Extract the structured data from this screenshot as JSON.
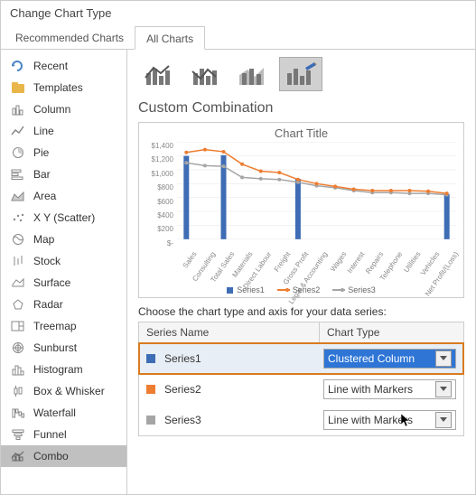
{
  "window": {
    "title": "Change Chart Type"
  },
  "tabs": {
    "recommended": "Recommended Charts",
    "all": "All Charts"
  },
  "sidebar": {
    "items": [
      {
        "label": "Recent"
      },
      {
        "label": "Templates"
      },
      {
        "label": "Column"
      },
      {
        "label": "Line"
      },
      {
        "label": "Pie"
      },
      {
        "label": "Bar"
      },
      {
        "label": "Area"
      },
      {
        "label": "X Y (Scatter)"
      },
      {
        "label": "Map"
      },
      {
        "label": "Stock"
      },
      {
        "label": "Surface"
      },
      {
        "label": "Radar"
      },
      {
        "label": "Treemap"
      },
      {
        "label": "Sunburst"
      },
      {
        "label": "Histogram"
      },
      {
        "label": "Box & Whisker"
      },
      {
        "label": "Waterfall"
      },
      {
        "label": "Funnel"
      },
      {
        "label": "Combo"
      }
    ]
  },
  "section_title": "Custom Combination",
  "preview": {
    "title": "Chart Title",
    "ylabels": [
      "$1,400",
      "$1,200",
      "$1,000",
      "$800",
      "$600",
      "$400",
      "$200",
      "$-"
    ],
    "categories": [
      "Sales",
      "Consulting",
      "Total Sales",
      "Materials",
      "Direct Labour",
      "Freight",
      "Gross Profit",
      "Legal & Accounting",
      "Wages",
      "Interest",
      "Repairs",
      "Telephone",
      "Utilities",
      "Vehicles",
      "Net Profit/(Loss)"
    ],
    "bars": [
      1200,
      0,
      1210,
      0,
      0,
      0,
      870,
      0,
      0,
      0,
      0,
      0,
      0,
      0,
      650
    ],
    "line2": [
      1250,
      1290,
      1260,
      1080,
      980,
      960,
      860,
      800,
      760,
      720,
      700,
      700,
      700,
      690,
      660
    ],
    "line3": [
      1100,
      1060,
      1050,
      890,
      870,
      860,
      820,
      770,
      740,
      700,
      670,
      670,
      660,
      660,
      640
    ],
    "ymax": 1400,
    "colors": {
      "bar": "#3e6db5",
      "line2": "#ed7d31",
      "line3": "#a5a5a5",
      "grid": "#e6e6e6"
    },
    "legend": {
      "s1": "Series1",
      "s2": "Series2",
      "s3": "Series3"
    }
  },
  "series_section": {
    "instruction": "Choose the chart type and axis for your data series:",
    "col_name": "Series Name",
    "col_type": "Chart Type",
    "rows": [
      {
        "name": "Series1",
        "type": "Clustered Column",
        "color": "#3e6db5",
        "highlighted": true
      },
      {
        "name": "Series2",
        "type": "Line with Markers",
        "color": "#ed7d31",
        "highlighted": false
      },
      {
        "name": "Series3",
        "type": "Line with Markers",
        "color": "#a5a5a5",
        "highlighted": false
      }
    ]
  }
}
